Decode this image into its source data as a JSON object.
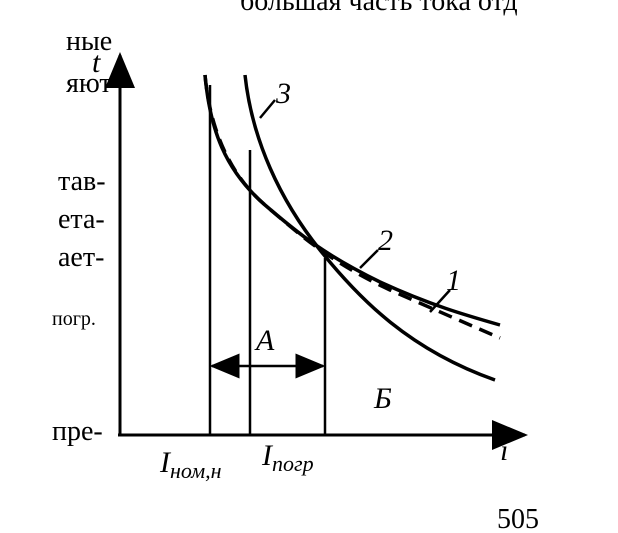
{
  "header": {
    "text": "большая часть тока отд"
  },
  "left_fragments": [
    "ные",
    "яют",
    "тав-",
    "ета-",
    "ает-",
    "погр.",
    "пре-"
  ],
  "diagram": {
    "axis_y": "t",
    "axis_x": "i",
    "curve_labels": [
      "1",
      "2",
      "3"
    ],
    "region_a": "A",
    "region_b": "Б",
    "current_nominal": {
      "main": "I",
      "sub": "ном,н"
    },
    "current_overload": {
      "main": "I",
      "sub": "погр"
    }
  },
  "page_number": "505"
}
